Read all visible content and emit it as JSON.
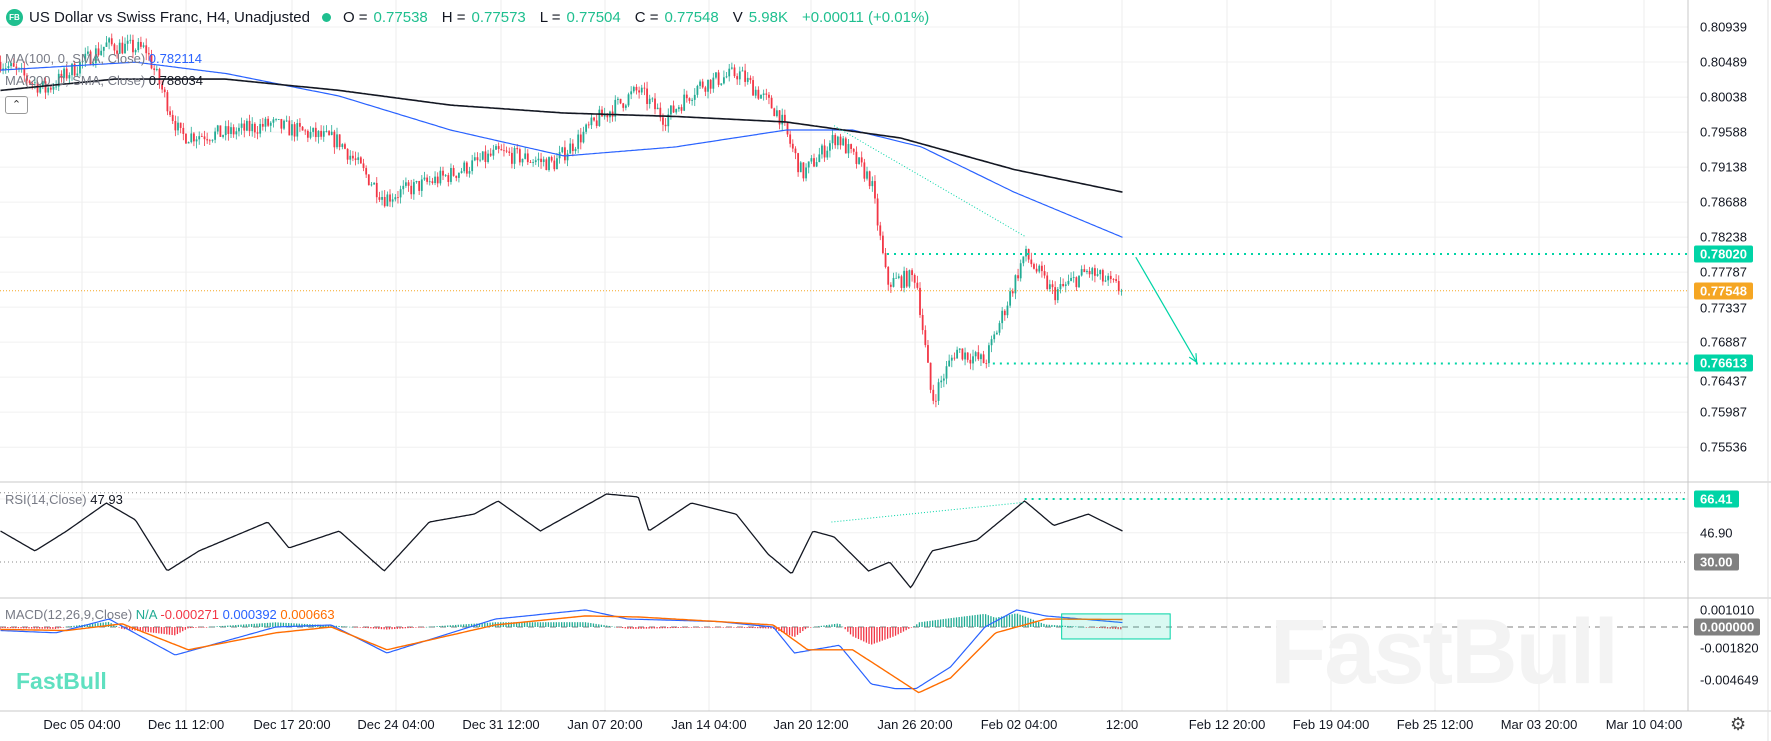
{
  "header": {
    "title": "US Dollar vs Swiss Franc, H4, Unadjusted",
    "logo": "FB",
    "o_label": "O =",
    "o": "0.77538",
    "h_label": "H =",
    "h": "0.77573",
    "l_label": "L =",
    "l": "0.77504",
    "c_label": "C =",
    "c": "0.77548",
    "v_label": "V",
    "v": "5.98K",
    "change": "+0.00011 (+0.01%)"
  },
  "legends": {
    "ma100_label": "MA(100, 0, SMA, Close)",
    "ma100_value": "0.782114",
    "ma200_label": "MA(200, 0, SMA, Close)",
    "ma200_value": "0.788034",
    "rsi_label": "RSI(14,Close)",
    "rsi_value": "47.93",
    "macd_label": "MACD(12,26,9,Close)",
    "macd_na": "N/A",
    "macd_hist": "-0.000271",
    "macd_line": "0.000392",
    "macd_signal": "0.000663"
  },
  "collapse_icon": "chevron-up-icon",
  "branding": {
    "watermark": "FastBull",
    "logo_text": "FastBull"
  },
  "colors": {
    "up": "#22ab94",
    "down": "#f23645",
    "ma100": "#2962ff",
    "ma200": "#131722",
    "accent": "#00d4a6",
    "last_price": "#f5a623",
    "macd": "#2962ff",
    "signal": "#ff6d00",
    "neutral_tag": "#808080"
  },
  "chart_data": [
    {
      "type": "candlestick",
      "title": "US Dollar vs Swiss Franc, H4, Unadjusted",
      "ylim": [
        0.7531,
        0.8105
      ],
      "y_ticks": [
        "0.80939",
        "0.80489",
        "0.80038",
        "0.79588",
        "0.79138",
        "0.78688",
        "0.78238",
        "0.77787",
        "0.77337",
        "0.76887",
        "0.76437",
        "0.75987",
        "0.75536"
      ],
      "x_ticks": [
        "Dec 05 04:00",
        "Dec 11 12:00",
        "Dec 17 20:00",
        "Dec 24 04:00",
        "Dec 31 12:00",
        "Jan 07 20:00",
        "Jan 14 04:00",
        "Jan 20 12:00",
        "Jan 26 20:00",
        "Feb 02 04:00",
        "12:00",
        "Feb 12 20:00",
        "Feb 19 04:00",
        "Feb 25 12:00",
        "Mar 03 20:00",
        "Mar 10 04:00"
      ],
      "close_path": [
        [
          "Nov 30 00:00",
          0.8049
        ],
        [
          "Dec 02 20:00",
          0.8013
        ],
        [
          "Dec 06 16:00",
          0.8071
        ],
        [
          "Dec 09 04:00",
          0.8065
        ],
        [
          "Dec 11 08:00",
          0.7954
        ],
        [
          "Dec 14 04:00",
          0.7957
        ],
        [
          "Dec 17 00:00",
          0.7969
        ],
        [
          "Dec 21 08:00",
          0.7947
        ],
        [
          "Dec 24 04:00",
          0.7874
        ],
        [
          "Dec 28 08:00",
          0.7904
        ],
        [
          "Dec 31 08:00",
          0.7932
        ],
        [
          "Jan 03 20:00",
          0.7918
        ],
        [
          "Jan 06 16:00",
          0.7976
        ],
        [
          "Jan 09 04:00",
          0.8013
        ],
        [
          "Jan 10 20:00",
          0.7976
        ],
        [
          "Jan 13 00:00",
          0.8019
        ],
        [
          "Jan 15 12:00",
          0.8035
        ],
        [
          "Jan 18 00:00",
          0.7983
        ],
        [
          "Jan 19 12:00",
          0.7904
        ],
        [
          "Jan 21 16:00",
          0.7954
        ],
        [
          "Jan 23 20:00",
          0.7896
        ],
        [
          "Jan 24 20:00",
          0.7765
        ],
        [
          "Jan 26 16:00",
          0.7773
        ],
        [
          "Jan 27 16:00",
          0.7613
        ],
        [
          "Jan 29 04:00",
          0.7679
        ],
        [
          "Jan 31 00:00",
          0.7663
        ],
        [
          "Feb 01 08:00",
          0.7736
        ],
        [
          "Feb 02 12:00",
          0.7802
        ],
        [
          "Feb 04 08:00",
          0.7751
        ],
        [
          "Feb 06 12:00",
          0.778
        ],
        [
          "Feb 08 16:00",
          0.77548
        ]
      ],
      "ma100": [
        [
          "Nov 30 00:00",
          0.80385
        ],
        [
          "Dec 08 12:00",
          0.80487
        ],
        [
          "Dec 14 04:00",
          0.80342
        ],
        [
          "Dec 21 08:00",
          0.80051
        ],
        [
          "Dec 28 08:00",
          0.79615
        ],
        [
          "Jan 04 12:00",
          0.79281
        ],
        [
          "Jan 11 12:00",
          0.79397
        ],
        [
          "Jan 18 12:00",
          0.79615
        ],
        [
          "Jan 22 16:00",
          0.79615
        ],
        [
          "Jan 27 00:00",
          0.79397
        ],
        [
          "Feb 01 20:00",
          0.78816
        ],
        [
          "Feb 08 16:00",
          0.78235
        ]
      ],
      "ma200": [
        [
          "Nov 30 00:00",
          0.80124
        ],
        [
          "Dec 07 04:00",
          0.80269
        ],
        [
          "Dec 14 04:00",
          0.80269
        ],
        [
          "Dec 21 08:00",
          0.80124
        ],
        [
          "Dec 28 08:00",
          0.79935
        ],
        [
          "Jan 04 12:00",
          0.79833
        ],
        [
          "Jan 11 12:00",
          0.79789
        ],
        [
          "Jan 18 12:00",
          0.79717
        ],
        [
          "Jan 25 16:00",
          0.79513
        ],
        [
          "Feb 01 20:00",
          0.79107
        ],
        [
          "Feb 08 16:00",
          0.78816
        ]
      ],
      "levels": [
        {
          "label": "0.78020",
          "value": 0.7802,
          "from": "Jan 24 20:00"
        },
        {
          "label": "0.76613",
          "value": 0.76613,
          "from": "Jan 31 12:00"
        }
      ],
      "last_price": {
        "label": "0.77548",
        "value": 0.77548
      },
      "trend_line": [
        [
          "Jan 21 12:00",
          0.7967
        ],
        [
          "Feb 02 12:00",
          0.7825
        ]
      ],
      "arrow": [
        [
          "Feb 09 12:00",
          0.7798
        ],
        [
          "Feb 13 08:00",
          0.7663
        ]
      ]
    },
    {
      "type": "line",
      "title": "RSI(14,Close)",
      "ylim": [
        10,
        75
      ],
      "levels": [
        70,
        30
      ],
      "y_ticks": [
        "66.41",
        "46.90",
        "30.00"
      ],
      "values": [
        [
          "Nov 30 00:00",
          47.9
        ],
        [
          "Dec 02 04:00",
          36.4
        ],
        [
          "Dec 04 04:00",
          47.9
        ],
        [
          "Dec 06 16:00",
          64.1
        ],
        [
          "Dec 08 12:00",
          54.3
        ],
        [
          "Dec 10 12:00",
          24.8
        ],
        [
          "Dec 12 12:00",
          36.4
        ],
        [
          "Dec 16 20:00",
          53.1
        ],
        [
          "Dec 18 04:00",
          38.1
        ],
        [
          "Dec 21 08:00",
          47.9
        ],
        [
          "Dec 24 04:00",
          24.8
        ],
        [
          "Dec 27 00:00",
          53.1
        ],
        [
          "Dec 29 20:00",
          57.7
        ],
        [
          "Dec 31 08:00",
          65.3
        ],
        [
          "Jan 03 00:00",
          47.9
        ],
        [
          "Jan 07 04:00",
          69.3
        ],
        [
          "Jan 09 04:00",
          67.6
        ],
        [
          "Jan 09 20:00",
          47.9
        ],
        [
          "Jan 12 12:00",
          64.1
        ],
        [
          "Jan 15 08:00",
          57.7
        ],
        [
          "Jan 17 08:00",
          34.6
        ],
        [
          "Jan 18 20:00",
          23.1
        ],
        [
          "Jan 20 04:00",
          47.9
        ],
        [
          "Jan 21 12:00",
          44.5
        ],
        [
          "Jan 23 16:00",
          24.8
        ],
        [
          "Jan 25 00:00",
          30.0
        ],
        [
          "Jan 26 08:00",
          15.0
        ],
        [
          "Jan 27 16:00",
          36.4
        ],
        [
          "Jan 30 12:00",
          42.7
        ],
        [
          "Feb 02 12:00",
          65.3
        ],
        [
          "Feb 04 08:00",
          51.1
        ],
        [
          "Feb 06 12:00",
          57.7
        ],
        [
          "Feb 08 16:00",
          47.9
        ]
      ],
      "level_line": {
        "label": "66.41",
        "value": 66.41,
        "from": "Feb 02 12:00"
      },
      "trend_line": [
        [
          "Jan 21 08:00",
          53.1
        ],
        [
          "Feb 02 12:00",
          64.5
        ]
      ]
    },
    {
      "type": "macd",
      "title": "MACD(12,26,9,Close)",
      "ylim": [
        -0.0075,
        0.0025
      ],
      "y_ticks": [
        "0.001010",
        "0.000000",
        "-0.001820",
        "-0.004649"
      ],
      "macd": [
        [
          "Nov 30 00:00",
          -0.00031
        ],
        [
          "Dec 03 12:00",
          -0.00051
        ],
        [
          "Dec 06 20:00",
          0.0007
        ],
        [
          "Dec 11 00:00",
          -0.00246
        ],
        [
          "Dec 17 08:00",
          0.0
        ],
        [
          "Dec 20 20:00",
          0.00018
        ],
        [
          "Dec 24 08:00",
          -0.00228
        ],
        [
          "Dec 31 04:00",
          0.0007
        ],
        [
          "Jan 05 20:00",
          0.0015
        ],
        [
          "Jan 08 12:00",
          0.0007
        ],
        [
          "Jan 14 04:00",
          0.00048
        ],
        [
          "Jan 17 16:00",
          0.0
        ],
        [
          "Jan 19 00:00",
          -0.00228
        ],
        [
          "Jan 21 20:00",
          -0.0016
        ],
        [
          "Jan 23 20:00",
          -0.005
        ],
        [
          "Jan 25 08:00",
          -0.0054
        ],
        [
          "Jan 26 16:00",
          -0.0054
        ],
        [
          "Jan 28 20:00",
          -0.0035
        ],
        [
          "Jan 31 00:00",
          0.0
        ],
        [
          "Feb 02 00:00",
          0.0015
        ],
        [
          "Feb 03 20:00",
          0.00097
        ],
        [
          "Feb 08 16:00",
          0.00039
        ]
      ],
      "signal": [
        [
          "Nov 30 00:00",
          -0.00021
        ],
        [
          "Dec 04 04:00",
          -0.00031
        ],
        [
          "Dec 07 16:00",
          0.00028
        ],
        [
          "Dec 11 20:00",
          -0.002
        ],
        [
          "Dec 17 08:00",
          -0.00051
        ],
        [
          "Dec 20 20:00",
          0.0
        ],
        [
          "Dec 24 08:00",
          -0.002
        ],
        [
          "Dec 31 04:00",
          0.00018
        ],
        [
          "Jan 05 20:00",
          0.00097
        ],
        [
          "Jan 09 04:00",
          0.00088
        ],
        [
          "Jan 14 04:00",
          0.00048
        ],
        [
          "Jan 17 16:00",
          0.00018
        ],
        [
          "Jan 19 20:00",
          -0.002
        ],
        [
          "Jan 22 16:00",
          -0.002
        ],
        [
          "Jan 24 20:00",
          -0.00395
        ],
        [
          "Jan 26 20:00",
          -0.00576
        ],
        [
          "Jan 28 20:00",
          -0.00447
        ],
        [
          "Jan 31 16:00",
          -0.00051
        ],
        [
          "Feb 03 20:00",
          0.0007
        ],
        [
          "Feb 08 16:00",
          0.00066
        ]
      ],
      "zero_tag": "0.000000",
      "highlight": [
        [
          "Feb 04 20:00",
          0.00115
        ],
        [
          "Feb 11 16:00",
          -0.00105
        ]
      ]
    }
  ]
}
